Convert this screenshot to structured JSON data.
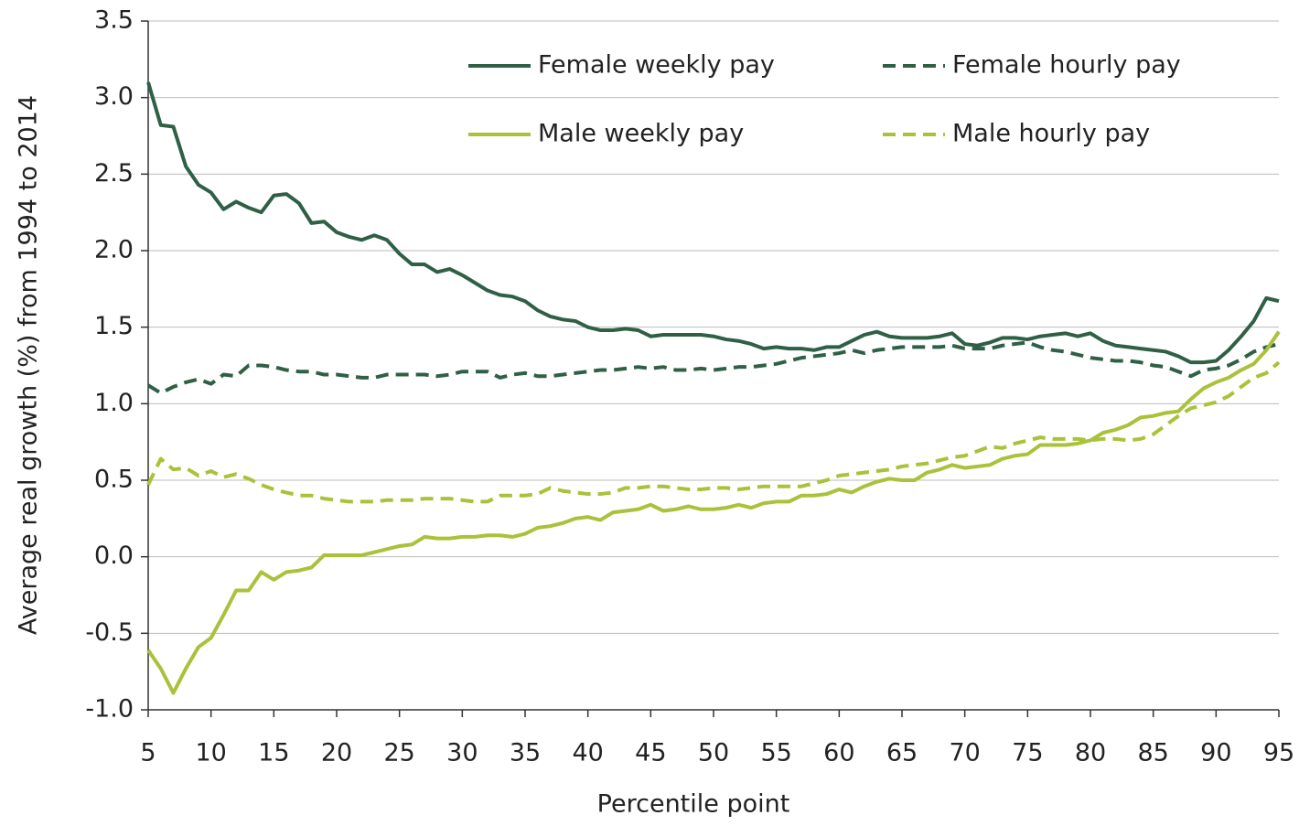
{
  "chart_data": {
    "type": "line",
    "x_label": "Percentile point",
    "y_label": "Average real growth (%) from 1994 to 2014",
    "x": [
      5,
      6,
      7,
      8,
      9,
      10,
      11,
      12,
      13,
      14,
      15,
      16,
      17,
      18,
      19,
      20,
      21,
      22,
      23,
      24,
      25,
      26,
      27,
      28,
      29,
      30,
      31,
      32,
      33,
      34,
      35,
      36,
      37,
      38,
      39,
      40,
      41,
      42,
      43,
      44,
      45,
      46,
      47,
      48,
      49,
      50,
      51,
      52,
      53,
      54,
      55,
      56,
      57,
      58,
      59,
      60,
      61,
      62,
      63,
      64,
      65,
      66,
      67,
      68,
      69,
      70,
      71,
      72,
      73,
      74,
      75,
      76,
      77,
      78,
      79,
      80,
      81,
      82,
      83,
      84,
      85,
      86,
      87,
      88,
      89,
      90,
      91,
      92,
      93,
      94,
      95
    ],
    "series": [
      {
        "name": "Female weekly pay",
        "color": "#2f6046",
        "dashed": false,
        "values": [
          3.1,
          2.82,
          2.81,
          2.55,
          2.43,
          2.38,
          2.27,
          2.32,
          2.28,
          2.25,
          2.36,
          2.37,
          2.31,
          2.18,
          2.19,
          2.12,
          2.09,
          2.07,
          2.1,
          2.07,
          1.98,
          1.91,
          1.91,
          1.86,
          1.88,
          1.84,
          1.79,
          1.74,
          1.71,
          1.7,
          1.67,
          1.61,
          1.57,
          1.55,
          1.54,
          1.5,
          1.48,
          1.48,
          1.49,
          1.48,
          1.44,
          1.45,
          1.45,
          1.45,
          1.45,
          1.44,
          1.42,
          1.41,
          1.39,
          1.36,
          1.37,
          1.36,
          1.36,
          1.35,
          1.37,
          1.37,
          1.41,
          1.45,
          1.47,
          1.44,
          1.43,
          1.43,
          1.43,
          1.44,
          1.46,
          1.39,
          1.38,
          1.4,
          1.43,
          1.43,
          1.42,
          1.44,
          1.45,
          1.46,
          1.44,
          1.46,
          1.41,
          1.38,
          1.37,
          1.36,
          1.35,
          1.34,
          1.31,
          1.27,
          1.27,
          1.28,
          1.35,
          1.44,
          1.54,
          1.69,
          1.67
        ]
      },
      {
        "name": "Female hourly pay",
        "color": "#2f6046",
        "dashed": true,
        "values": [
          1.12,
          1.07,
          1.11,
          1.14,
          1.16,
          1.13,
          1.19,
          1.18,
          1.25,
          1.25,
          1.24,
          1.22,
          1.21,
          1.21,
          1.19,
          1.19,
          1.18,
          1.17,
          1.17,
          1.19,
          1.19,
          1.19,
          1.19,
          1.18,
          1.19,
          1.21,
          1.21,
          1.21,
          1.17,
          1.19,
          1.2,
          1.18,
          1.18,
          1.19,
          1.2,
          1.21,
          1.22,
          1.22,
          1.23,
          1.24,
          1.23,
          1.24,
          1.22,
          1.22,
          1.23,
          1.22,
          1.23,
          1.24,
          1.24,
          1.25,
          1.26,
          1.28,
          1.3,
          1.31,
          1.32,
          1.33,
          1.35,
          1.33,
          1.35,
          1.36,
          1.37,
          1.37,
          1.37,
          1.37,
          1.38,
          1.36,
          1.36,
          1.36,
          1.38,
          1.39,
          1.4,
          1.37,
          1.35,
          1.34,
          1.32,
          1.3,
          1.29,
          1.28,
          1.28,
          1.27,
          1.25,
          1.24,
          1.21,
          1.18,
          1.22,
          1.23,
          1.25,
          1.29,
          1.34,
          1.37,
          1.39
        ]
      },
      {
        "name": "Male weekly pay",
        "color": "#a9c23a",
        "dashed": false,
        "values": [
          -0.61,
          -0.73,
          -0.89,
          -0.73,
          -0.59,
          -0.53,
          -0.38,
          -0.22,
          -0.22,
          -0.1,
          -0.15,
          -0.1,
          -0.09,
          -0.07,
          0.01,
          0.01,
          0.01,
          0.01,
          0.03,
          0.05,
          0.07,
          0.08,
          0.13,
          0.12,
          0.12,
          0.13,
          0.13,
          0.14,
          0.14,
          0.13,
          0.15,
          0.19,
          0.2,
          0.22,
          0.25,
          0.26,
          0.24,
          0.29,
          0.3,
          0.31,
          0.34,
          0.3,
          0.31,
          0.33,
          0.31,
          0.31,
          0.32,
          0.34,
          0.32,
          0.35,
          0.36,
          0.36,
          0.4,
          0.4,
          0.41,
          0.44,
          0.42,
          0.46,
          0.49,
          0.51,
          0.5,
          0.5,
          0.55,
          0.57,
          0.6,
          0.58,
          0.59,
          0.6,
          0.64,
          0.66,
          0.67,
          0.73,
          0.73,
          0.73,
          0.74,
          0.76,
          0.81,
          0.83,
          0.86,
          0.91,
          0.92,
          0.94,
          0.95,
          1.03,
          1.1,
          1.14,
          1.17,
          1.22,
          1.26,
          1.35,
          1.47
        ]
      },
      {
        "name": "Male hourly pay",
        "color": "#a9c23a",
        "dashed": true,
        "values": [
          0.47,
          0.64,
          0.57,
          0.58,
          0.53,
          0.56,
          0.52,
          0.54,
          0.51,
          0.47,
          0.44,
          0.42,
          0.4,
          0.4,
          0.38,
          0.37,
          0.36,
          0.36,
          0.36,
          0.37,
          0.37,
          0.37,
          0.38,
          0.38,
          0.38,
          0.37,
          0.36,
          0.36,
          0.4,
          0.4,
          0.4,
          0.41,
          0.45,
          0.43,
          0.42,
          0.41,
          0.41,
          0.42,
          0.45,
          0.45,
          0.46,
          0.46,
          0.45,
          0.44,
          0.44,
          0.45,
          0.45,
          0.44,
          0.45,
          0.46,
          0.46,
          0.46,
          0.46,
          0.48,
          0.5,
          0.53,
          0.54,
          0.55,
          0.56,
          0.57,
          0.59,
          0.6,
          0.61,
          0.63,
          0.65,
          0.66,
          0.69,
          0.72,
          0.71,
          0.74,
          0.76,
          0.78,
          0.77,
          0.77,
          0.77,
          0.76,
          0.77,
          0.77,
          0.76,
          0.77,
          0.8,
          0.86,
          0.92,
          0.97,
          0.99,
          1.01,
          1.05,
          1.11,
          1.17,
          1.2,
          1.27
        ]
      }
    ],
    "xlim": [
      5,
      95
    ],
    "xticks": [
      5,
      10,
      15,
      20,
      25,
      30,
      35,
      40,
      45,
      50,
      55,
      60,
      65,
      70,
      75,
      80,
      85,
      90,
      95
    ],
    "ylim": [
      -1,
      3.5
    ],
    "yticks": [
      {
        "value": -1,
        "label": "-1.0"
      },
      -0.5,
      {
        "value": 0,
        "label": "0.0"
      },
      0.5,
      {
        "value": 1,
        "label": "1.0"
      },
      1.5,
      {
        "value": 2,
        "label": "2.0"
      },
      2.5,
      {
        "value": 3,
        "label": "3.0"
      },
      3.5
    ],
    "grid": true,
    "legend": "top"
  }
}
